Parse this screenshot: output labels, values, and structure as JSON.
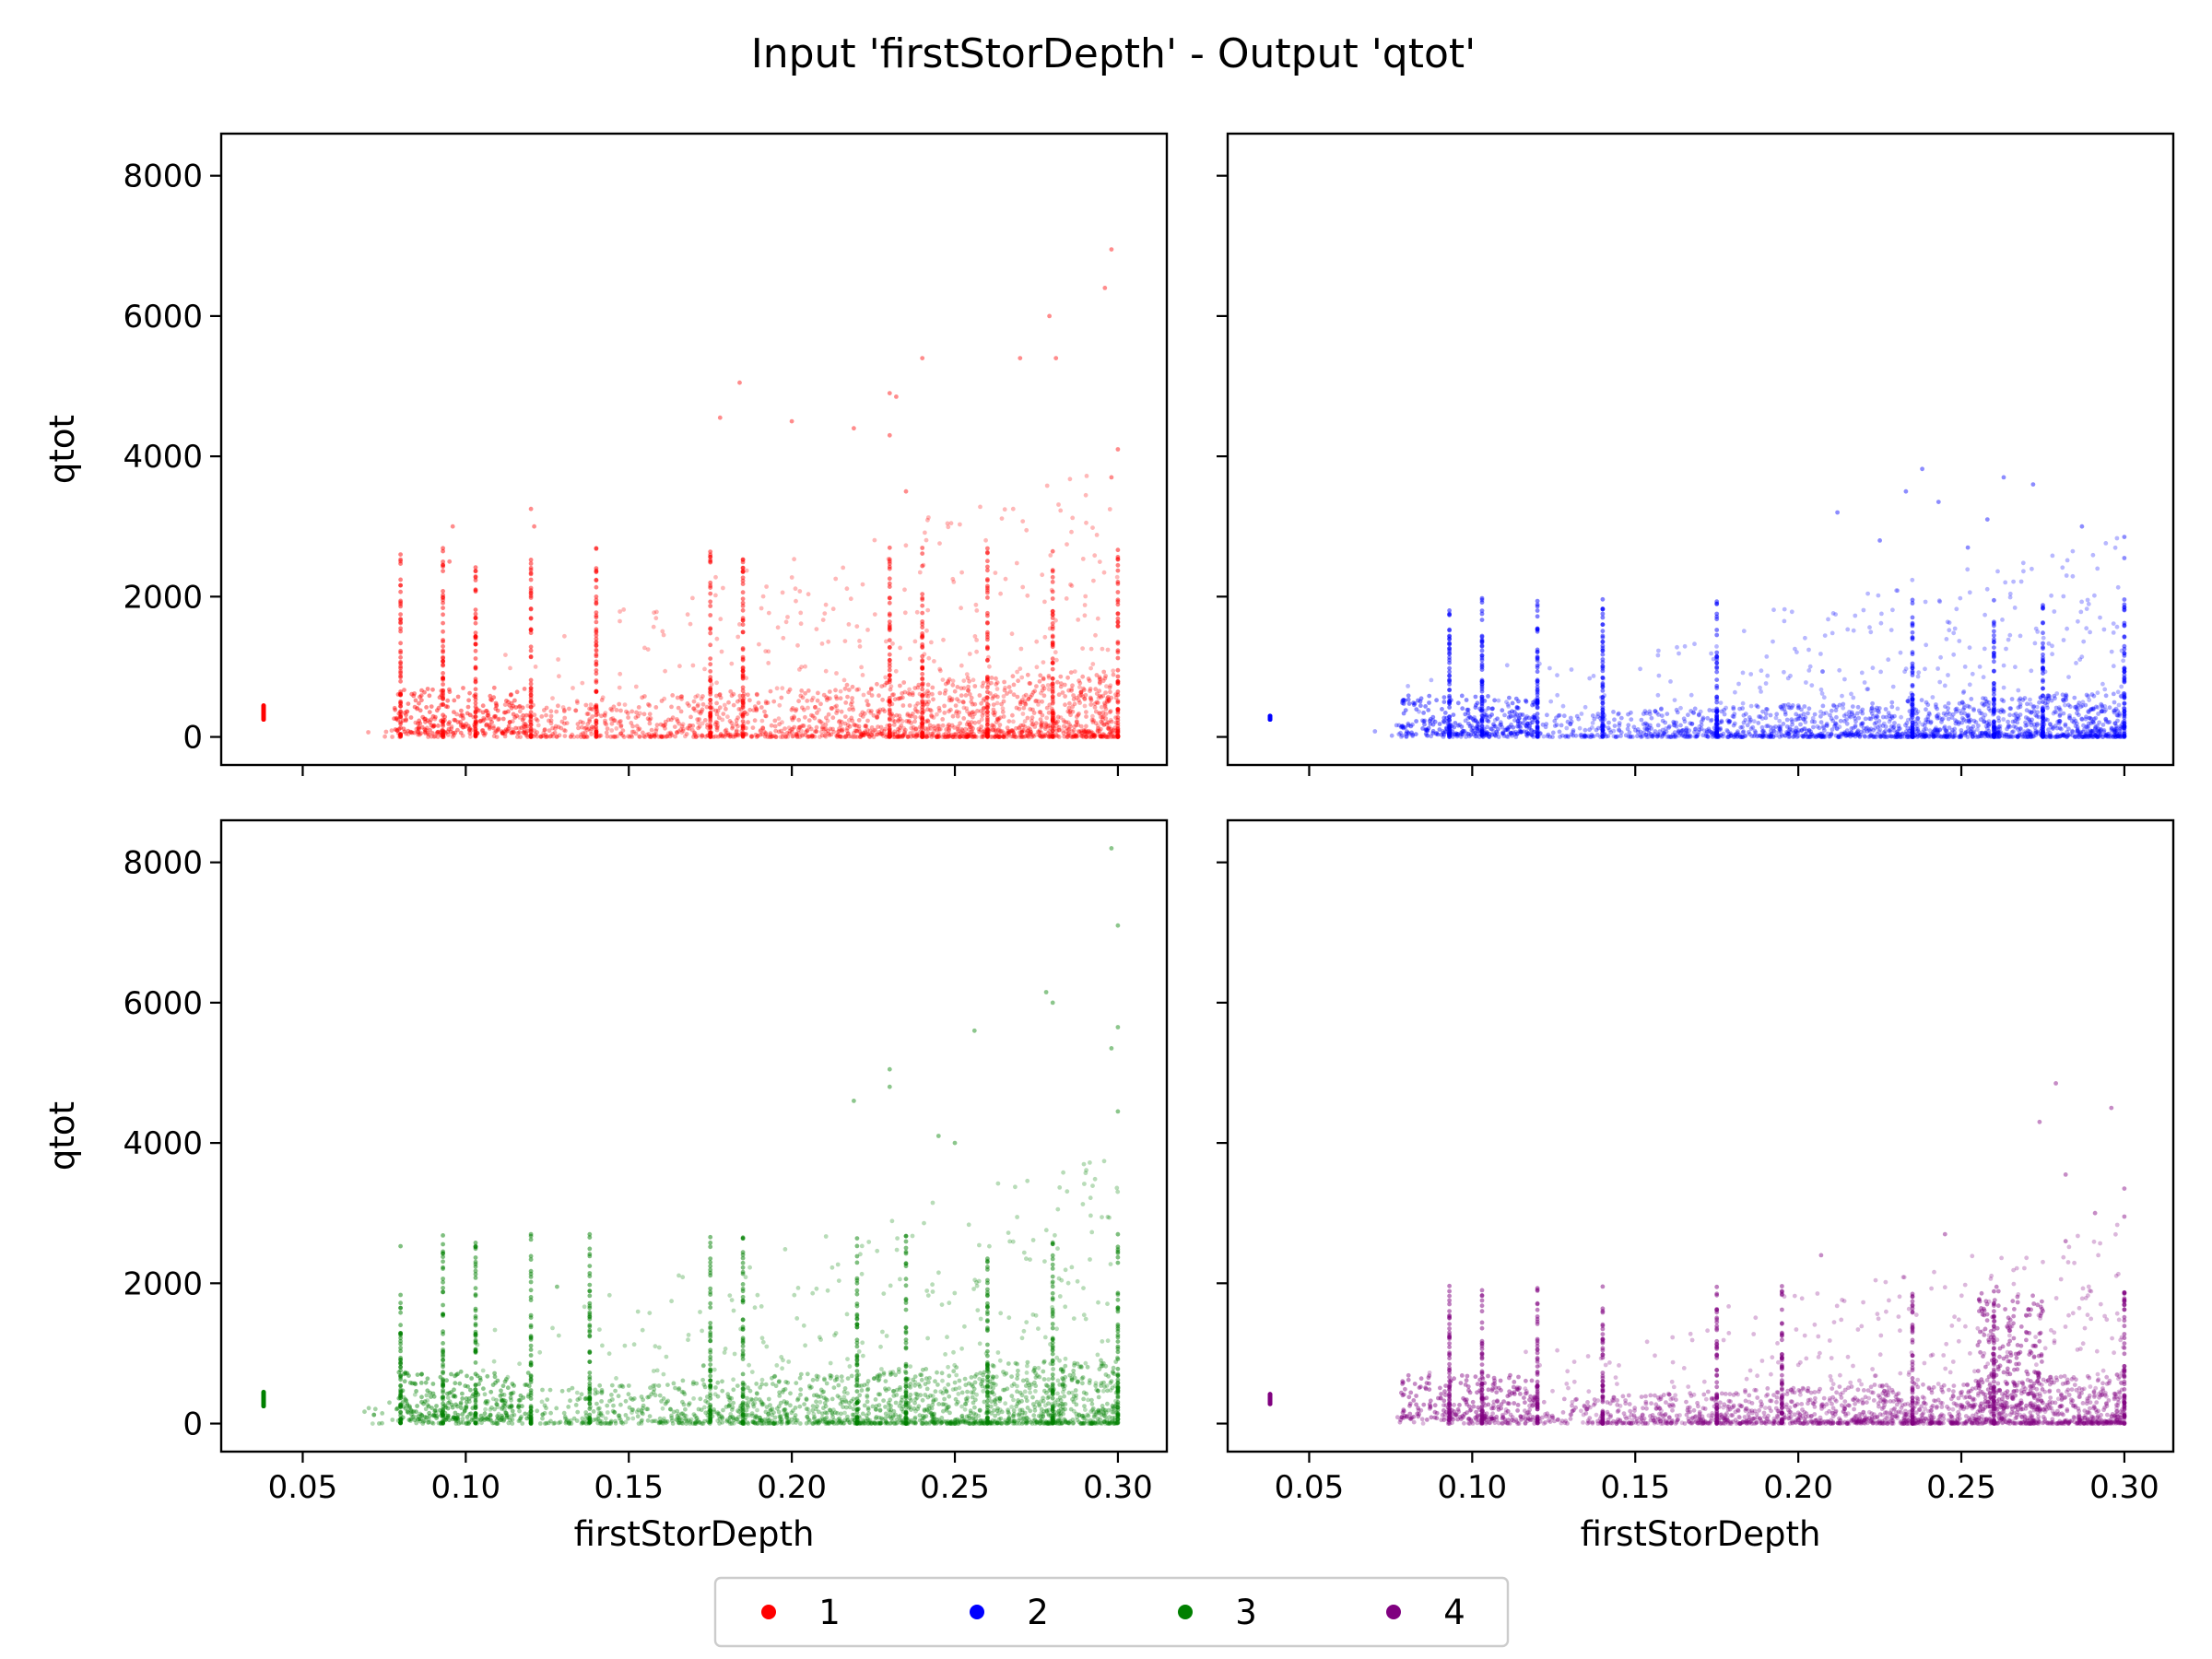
{
  "figure": {
    "title": "Input 'firstStorDepth' - Output 'qtot'"
  },
  "legend": {
    "entries": [
      {
        "label": "1",
        "color": "#ff0000"
      },
      {
        "label": "2",
        "color": "#0000ff"
      },
      {
        "label": "3",
        "color": "#008000"
      },
      {
        "label": "4",
        "color": "#800080"
      }
    ]
  },
  "chart_data": [
    {
      "type": "scatter",
      "series": [
        {
          "name": "1",
          "color": "#ff0000"
        }
      ],
      "xlabel": "",
      "ylabel": "qtot",
      "xlim": [
        0.025,
        0.315
      ],
      "ylim": [
        -400,
        8600
      ],
      "xticks": [
        0.05,
        0.1,
        0.15,
        0.2,
        0.25,
        0.3
      ],
      "xtick_labels": [],
      "yticks": [
        0,
        2000,
        4000,
        6000,
        8000
      ],
      "ytick_labels": [
        "0",
        "2000",
        "4000",
        "6000",
        "8000"
      ],
      "bulk": {
        "x_min": 0.068,
        "x_max": 0.3,
        "y_core_max": 600,
        "y_spread_max": 3000
      },
      "clusters": [
        {
          "x": 0.038,
          "y_min": 250,
          "y_max": 450
        },
        {
          "x_min": 0.078,
          "x_max": 0.12,
          "y_min": 50,
          "y_max": 700
        }
      ],
      "stripes": [
        0.08,
        0.093,
        0.103,
        0.12,
        0.14,
        0.175,
        0.185,
        0.23,
        0.24,
        0.26,
        0.28,
        0.3
      ],
      "outliers": [
        {
          "x": 0.298,
          "y": 6950
        },
        {
          "x": 0.296,
          "y": 6400
        },
        {
          "x": 0.279,
          "y": 6000
        },
        {
          "x": 0.27,
          "y": 5400
        },
        {
          "x": 0.281,
          "y": 5400
        },
        {
          "x": 0.24,
          "y": 5400
        },
        {
          "x": 0.184,
          "y": 5050
        },
        {
          "x": 0.23,
          "y": 4900
        },
        {
          "x": 0.232,
          "y": 4850
        },
        {
          "x": 0.178,
          "y": 4550
        },
        {
          "x": 0.2,
          "y": 4500
        },
        {
          "x": 0.23,
          "y": 4300
        },
        {
          "x": 0.219,
          "y": 4400
        },
        {
          "x": 0.12,
          "y": 3250
        },
        {
          "x": 0.121,
          "y": 3000
        },
        {
          "x": 0.096,
          "y": 3000
        },
        {
          "x": 0.095,
          "y": 2500
        },
        {
          "x": 0.14,
          "y": 2350
        },
        {
          "x": 0.235,
          "y": 3500
        },
        {
          "x": 0.3,
          "y": 4100
        },
        {
          "x": 0.298,
          "y": 3700
        }
      ]
    },
    {
      "type": "scatter",
      "series": [
        {
          "name": "2",
          "color": "#0000ff"
        }
      ],
      "xlabel": "",
      "ylabel": "",
      "xlim": [
        0.025,
        0.315
      ],
      "ylim": [
        -400,
        8600
      ],
      "xticks": [
        0.05,
        0.1,
        0.15,
        0.2,
        0.25,
        0.3
      ],
      "xtick_labels": [],
      "yticks": [
        0,
        2000,
        4000,
        6000,
        8000
      ],
      "ytick_labels": [],
      "bulk": {
        "x_min": 0.068,
        "x_max": 0.3,
        "y_core_max": 400,
        "y_spread_max": 2200
      },
      "clusters": [
        {
          "x": 0.038,
          "y_min": 250,
          "y_max": 300
        },
        {
          "x_min": 0.078,
          "x_max": 0.12,
          "y_min": 30,
          "y_max": 600
        }
      ],
      "stripes": [
        0.093,
        0.103,
        0.12,
        0.14,
        0.175,
        0.235,
        0.26,
        0.275,
        0.3
      ],
      "outliers": [
        {
          "x": 0.238,
          "y": 3820
        },
        {
          "x": 0.263,
          "y": 3700
        },
        {
          "x": 0.272,
          "y": 3600
        },
        {
          "x": 0.233,
          "y": 3500
        },
        {
          "x": 0.243,
          "y": 3350
        },
        {
          "x": 0.212,
          "y": 3200
        },
        {
          "x": 0.258,
          "y": 3100
        },
        {
          "x": 0.287,
          "y": 3000
        },
        {
          "x": 0.3,
          "y": 2850
        },
        {
          "x": 0.225,
          "y": 2800
        },
        {
          "x": 0.252,
          "y": 2700
        },
        {
          "x": 0.3,
          "y": 2550
        }
      ]
    },
    {
      "type": "scatter",
      "series": [
        {
          "name": "3",
          "color": "#008000"
        }
      ],
      "xlabel": "firstStorDepth",
      "ylabel": "qtot",
      "xlim": [
        0.025,
        0.315
      ],
      "ylim": [
        -400,
        8600
      ],
      "xticks": [
        0.05,
        0.1,
        0.15,
        0.2,
        0.25,
        0.3
      ],
      "xtick_labels": [
        "0.05",
        "0.10",
        "0.15",
        "0.20",
        "0.25",
        "0.30"
      ],
      "yticks": [
        0,
        2000,
        4000,
        6000,
        8000
      ],
      "ytick_labels": [
        "0",
        "2000",
        "4000",
        "6000",
        "8000"
      ],
      "bulk": {
        "x_min": 0.068,
        "x_max": 0.3,
        "y_core_max": 600,
        "y_spread_max": 3000
      },
      "clusters": [
        {
          "x": 0.038,
          "y_min": 250,
          "y_max": 450
        },
        {
          "x_min": 0.078,
          "x_max": 0.12,
          "y_min": 50,
          "y_max": 750
        }
      ],
      "stripes": [
        0.08,
        0.093,
        0.103,
        0.12,
        0.138,
        0.175,
        0.185,
        0.22,
        0.235,
        0.26,
        0.28,
        0.3
      ],
      "outliers": [
        {
          "x": 0.298,
          "y": 8200
        },
        {
          "x": 0.3,
          "y": 7100
        },
        {
          "x": 0.278,
          "y": 6150
        },
        {
          "x": 0.28,
          "y": 6000
        },
        {
          "x": 0.3,
          "y": 5650
        },
        {
          "x": 0.256,
          "y": 5600
        },
        {
          "x": 0.298,
          "y": 5350
        },
        {
          "x": 0.23,
          "y": 5050
        },
        {
          "x": 0.23,
          "y": 4800
        },
        {
          "x": 0.219,
          "y": 4600
        },
        {
          "x": 0.245,
          "y": 4100
        },
        {
          "x": 0.25,
          "y": 4000
        },
        {
          "x": 0.3,
          "y": 4450
        },
        {
          "x": 0.128,
          "y": 1950
        }
      ]
    },
    {
      "type": "scatter",
      "series": [
        {
          "name": "4",
          "color": "#800080"
        }
      ],
      "xlabel": "firstStorDepth",
      "ylabel": "",
      "xlim": [
        0.025,
        0.315
      ],
      "ylim": [
        -400,
        8600
      ],
      "xticks": [
        0.05,
        0.1,
        0.15,
        0.2,
        0.25,
        0.3
      ],
      "xtick_labels": [
        "0.05",
        "0.10",
        "0.15",
        "0.20",
        "0.25",
        "0.30"
      ],
      "yticks": [
        0,
        2000,
        4000,
        6000,
        8000
      ],
      "ytick_labels": [],
      "bulk": {
        "x_min": 0.075,
        "x_max": 0.3,
        "y_core_max": 450,
        "y_spread_max": 2200
      },
      "clusters": [
        {
          "x": 0.038,
          "y_min": 280,
          "y_max": 420
        },
        {
          "x_min": 0.078,
          "x_max": 0.12,
          "y_min": 50,
          "y_max": 700
        },
        {
          "x_min": 0.255,
          "x_max": 0.275,
          "y_min": 200,
          "y_max": 2000
        }
      ],
      "stripes": [
        0.093,
        0.103,
        0.12,
        0.14,
        0.175,
        0.195,
        0.235,
        0.26,
        0.3
      ],
      "outliers": [
        {
          "x": 0.279,
          "y": 4850
        },
        {
          "x": 0.296,
          "y": 4500
        },
        {
          "x": 0.274,
          "y": 4300
        },
        {
          "x": 0.282,
          "y": 3550
        },
        {
          "x": 0.3,
          "y": 3350
        },
        {
          "x": 0.291,
          "y": 3000
        },
        {
          "x": 0.3,
          "y": 2950
        },
        {
          "x": 0.245,
          "y": 2700
        },
        {
          "x": 0.282,
          "y": 2600
        },
        {
          "x": 0.207,
          "y": 2400
        }
      ]
    }
  ]
}
